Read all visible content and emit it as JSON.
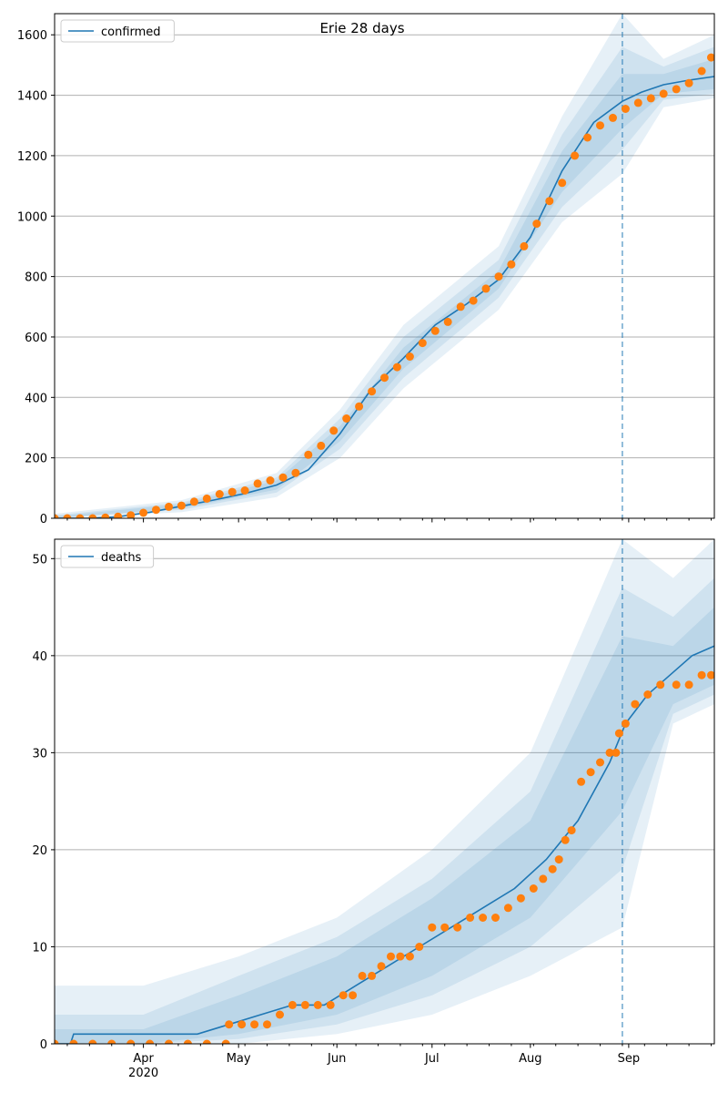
{
  "figure": {
    "title": "Erie 28 days"
  },
  "colors": {
    "model": "#1f77b4",
    "observed": "#ff7f0e",
    "band": "#1f77b4",
    "grid": "#b0b0b0",
    "axis": "#000000"
  },
  "x_axis": {
    "ticks": [
      {
        "date": "2020-04-01",
        "label": "Apr",
        "sublabel": "2020"
      },
      {
        "date": "2020-05-01",
        "label": "May"
      },
      {
        "date": "2020-06-01",
        "label": "Jun"
      },
      {
        "date": "2020-07-01",
        "label": "Jul"
      },
      {
        "date": "2020-08-01",
        "label": "Aug"
      },
      {
        "date": "2020-09-01",
        "label": "Sep"
      }
    ]
  },
  "chart_data": [
    {
      "type": "line",
      "legend": "confirmed",
      "legend_position": "top-left",
      "grid": "y",
      "xlim": [
        "2020-03-04",
        "2020-09-28"
      ],
      "ylim": [
        0,
        1670
      ],
      "yticks": [
        0,
        200,
        400,
        600,
        800,
        1000,
        1200,
        1400,
        1600
      ],
      "forecast_start": "2020-08-30",
      "model": {
        "x": [
          "2020-03-04",
          "2020-03-14",
          "2020-03-24",
          "2020-04-03",
          "2020-04-13",
          "2020-04-23",
          "2020-05-03",
          "2020-05-13",
          "2020-05-23",
          "2020-06-02",
          "2020-06-12",
          "2020-06-22",
          "2020-07-02",
          "2020-07-12",
          "2020-07-22",
          "2020-08-01",
          "2020-08-11",
          "2020-08-21",
          "2020-08-30",
          "2020-09-05",
          "2020-09-12",
          "2020-09-20",
          "2020-09-28"
        ],
        "y": [
          0,
          0,
          5,
          20,
          40,
          60,
          82,
          110,
          160,
          280,
          430,
          530,
          640,
          710,
          790,
          930,
          1150,
          1310,
          1380,
          1410,
          1435,
          1450,
          1462
        ]
      },
      "bands": [
        {
          "x": [
            "2020-03-04",
            "2020-04-13",
            "2020-05-13",
            "2020-06-02",
            "2020-06-22",
            "2020-07-22",
            "2020-08-11",
            "2020-08-30",
            "2020-09-12",
            "2020-09-28"
          ],
          "lower": [
            0,
            20,
            70,
            200,
            430,
            690,
            980,
            1140,
            1360,
            1390
          ],
          "upper": [
            15,
            60,
            150,
            360,
            640,
            900,
            1330,
            1670,
            1520,
            1600
          ]
        },
        {
          "x": [
            "2020-03-04",
            "2020-04-13",
            "2020-05-13",
            "2020-06-02",
            "2020-06-22",
            "2020-07-22",
            "2020-08-11",
            "2020-08-30",
            "2020-09-12",
            "2020-09-28"
          ],
          "lower": [
            0,
            28,
            85,
            230,
            465,
            730,
            1030,
            1220,
            1385,
            1405
          ],
          "upper": [
            10,
            52,
            135,
            330,
            600,
            855,
            1270,
            1560,
            1495,
            1560
          ]
        },
        {
          "x": [
            "2020-03-04",
            "2020-04-13",
            "2020-05-13",
            "2020-06-02",
            "2020-06-22",
            "2020-07-22",
            "2020-08-11",
            "2020-08-30",
            "2020-09-12",
            "2020-09-28"
          ],
          "lower": [
            0,
            33,
            95,
            255,
            495,
            760,
            1080,
            1290,
            1405,
            1420
          ],
          "upper": [
            6,
            47,
            125,
            305,
            565,
            820,
            1215,
            1470,
            1470,
            1520
          ]
        }
      ],
      "observed": {
        "x": [
          "2020-03-04",
          "2020-03-08",
          "2020-03-12",
          "2020-03-16",
          "2020-03-20",
          "2020-03-24",
          "2020-03-28",
          "2020-04-01",
          "2020-04-05",
          "2020-04-09",
          "2020-04-13",
          "2020-04-17",
          "2020-04-21",
          "2020-04-25",
          "2020-04-29",
          "2020-05-03",
          "2020-05-07",
          "2020-05-11",
          "2020-05-15",
          "2020-05-19",
          "2020-05-23",
          "2020-05-27",
          "2020-05-31",
          "2020-06-04",
          "2020-06-08",
          "2020-06-12",
          "2020-06-16",
          "2020-06-20",
          "2020-06-24",
          "2020-06-28",
          "2020-07-02",
          "2020-07-06",
          "2020-07-10",
          "2020-07-14",
          "2020-07-18",
          "2020-07-22",
          "2020-07-26",
          "2020-07-30",
          "2020-08-03",
          "2020-08-07",
          "2020-08-11",
          "2020-08-15",
          "2020-08-19",
          "2020-08-23",
          "2020-08-27",
          "2020-08-31",
          "2020-09-04",
          "2020-09-08",
          "2020-09-12",
          "2020-09-16",
          "2020-09-20",
          "2020-09-24",
          "2020-09-27"
        ],
        "y": [
          0,
          0,
          0,
          0,
          2,
          5,
          10,
          18,
          28,
          38,
          42,
          55,
          65,
          80,
          87,
          92,
          115,
          125,
          135,
          150,
          210,
          240,
          290,
          330,
          370,
          420,
          465,
          500,
          535,
          580,
          620,
          650,
          700,
          720,
          760,
          800,
          840,
          900,
          975,
          1050,
          1110,
          1200,
          1260,
          1300,
          1325,
          1355,
          1375,
          1390,
          1405,
          1420,
          1440,
          1480,
          1525
        ]
      }
    },
    {
      "type": "line",
      "legend": "deaths",
      "legend_position": "top-left",
      "grid": "y",
      "xlim": [
        "2020-03-04",
        "2020-09-28"
      ],
      "ylim": [
        0,
        52
      ],
      "yticks": [
        0,
        10,
        20,
        30,
        40,
        50
      ],
      "forecast_start": "2020-08-30",
      "model": {
        "x": [
          "2020-03-04",
          "2020-03-09",
          "2020-03-10",
          "2020-04-17",
          "2020-04-18",
          "2020-04-28",
          "2020-05-08",
          "2020-05-18",
          "2020-05-28",
          "2020-06-07",
          "2020-06-17",
          "2020-06-27",
          "2020-07-07",
          "2020-07-17",
          "2020-07-27",
          "2020-08-06",
          "2020-08-16",
          "2020-08-26",
          "2020-08-31",
          "2020-09-07",
          "2020-09-14",
          "2020-09-21",
          "2020-09-28"
        ],
        "y": [
          0,
          0,
          1,
          1,
          1,
          2,
          3,
          4,
          4,
          6,
          8,
          10,
          12,
          14,
          16,
          19,
          23,
          29,
          33,
          36,
          38,
          40,
          41
        ]
      },
      "bands": [
        {
          "x": [
            "2020-03-04",
            "2020-04-01",
            "2020-05-01",
            "2020-06-01",
            "2020-07-01",
            "2020-08-01",
            "2020-08-30",
            "2020-09-15",
            "2020-09-28"
          ],
          "lower": [
            0,
            0,
            0,
            1,
            3,
            7,
            12,
            33,
            35
          ],
          "upper": [
            6,
            6,
            9,
            13,
            20,
            30,
            52,
            48,
            52
          ]
        },
        {
          "x": [
            "2020-03-04",
            "2020-04-01",
            "2020-05-01",
            "2020-06-01",
            "2020-07-01",
            "2020-08-01",
            "2020-08-30",
            "2020-09-15",
            "2020-09-28"
          ],
          "lower": [
            0,
            0,
            0.5,
            2,
            5,
            10,
            18,
            34,
            36
          ],
          "upper": [
            3,
            3,
            7,
            11,
            17,
            26,
            47,
            44,
            48
          ]
        },
        {
          "x": [
            "2020-03-04",
            "2020-04-01",
            "2020-05-01",
            "2020-06-01",
            "2020-07-01",
            "2020-08-01",
            "2020-08-30",
            "2020-09-15",
            "2020-09-28"
          ],
          "lower": [
            0,
            0,
            1,
            3,
            7,
            13,
            24,
            35,
            37
          ],
          "upper": [
            1.5,
            1.5,
            5,
            9,
            15,
            23,
            42,
            41,
            45
          ]
        }
      ],
      "observed": {
        "x": [
          "2020-03-04",
          "2020-03-10",
          "2020-03-16",
          "2020-03-22",
          "2020-03-28",
          "2020-04-03",
          "2020-04-09",
          "2020-04-15",
          "2020-04-21",
          "2020-04-27",
          "2020-04-28",
          "2020-05-02",
          "2020-05-06",
          "2020-05-10",
          "2020-05-14",
          "2020-05-18",
          "2020-05-22",
          "2020-05-26",
          "2020-05-30",
          "2020-06-03",
          "2020-06-06",
          "2020-06-09",
          "2020-06-12",
          "2020-06-15",
          "2020-06-18",
          "2020-06-21",
          "2020-06-24",
          "2020-06-27",
          "2020-07-01",
          "2020-07-05",
          "2020-07-09",
          "2020-07-13",
          "2020-07-17",
          "2020-07-21",
          "2020-07-25",
          "2020-07-29",
          "2020-08-02",
          "2020-08-05",
          "2020-08-08",
          "2020-08-10",
          "2020-08-12",
          "2020-08-14",
          "2020-08-17",
          "2020-08-20",
          "2020-08-23",
          "2020-08-26",
          "2020-08-28",
          "2020-08-29",
          "2020-08-31",
          "2020-09-03",
          "2020-09-07",
          "2020-09-11",
          "2020-09-16",
          "2020-09-20",
          "2020-09-24",
          "2020-09-27"
        ],
        "y": [
          0,
          0,
          0,
          0,
          0,
          0,
          0,
          0,
          0,
          0,
          2,
          2,
          2,
          2,
          3,
          4,
          4,
          4,
          4,
          5,
          5,
          7,
          7,
          8,
          9,
          9,
          9,
          10,
          12,
          12,
          12,
          13,
          13,
          13,
          14,
          15,
          16,
          17,
          18,
          19,
          21,
          22,
          27,
          28,
          29,
          30,
          30,
          32,
          33,
          35,
          36,
          37,
          37,
          37,
          38,
          38
        ]
      }
    }
  ]
}
